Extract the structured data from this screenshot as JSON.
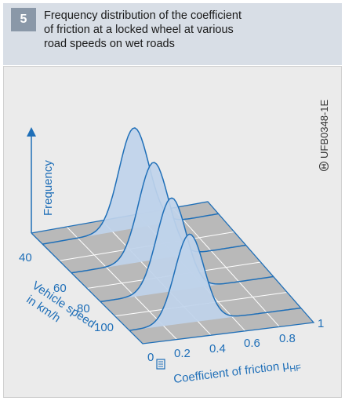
{
  "figure": {
    "number": "5",
    "title_lines": [
      "Frequency distribution of the coefficient",
      "of friction at a locked wheel at various",
      "road speeds on wet roads"
    ]
  },
  "axes": {
    "z_label": "Frequency",
    "y_label_lines": [
      "Vehicle speed",
      "in km/h"
    ],
    "x_label_main": "Coefficient of friction μ",
    "x_label_sub": "HF",
    "x_ticks": [
      "0",
      "0.2",
      "0.4",
      "0.6",
      "0.8",
      "1"
    ],
    "y_ticks": [
      "40",
      "60",
      "80",
      "100"
    ]
  },
  "series": [
    {
      "speed": 40,
      "mean_mu": 0.52,
      "peak_frequency": 1.0
    },
    {
      "speed": 60,
      "mean_mu": 0.47,
      "peak_frequency": 0.97
    },
    {
      "speed": 80,
      "mean_mu": 0.41,
      "peak_frequency": 0.93
    },
    {
      "speed": 100,
      "mean_mu": 0.35,
      "peak_frequency": 0.88
    }
  ],
  "figure_id": "UFB0348-1E",
  "colors": {
    "header_bg": "#d8dee6",
    "number_bg": "#8a98a8",
    "panel_bg": "#ebebeb",
    "plane": "#b9b9b9",
    "accent": "#1f6fb8",
    "curve_fill": "#bfd2ea"
  }
}
